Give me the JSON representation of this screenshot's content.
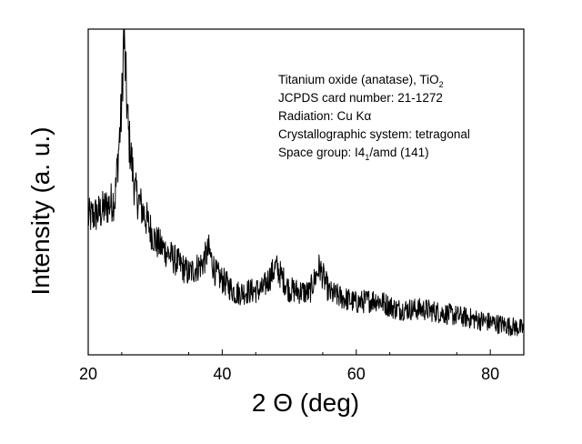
{
  "chart_data": {
    "type": "line",
    "xlabel": "2 Θ (deg)",
    "ylabel": "Intensity (a. u.)",
    "xlim": [
      20,
      85
    ],
    "ylim": [
      0,
      100
    ],
    "x_ticks": [
      "20",
      "40",
      "60",
      "80"
    ],
    "x_tick_values": [
      20,
      40,
      60,
      80
    ],
    "y_ticks_shown": false,
    "grid": false,
    "line_color": "#000000",
    "annotations": [
      {
        "text": "Titanium oxide (anatase), TiO",
        "sub": "2",
        "tail": ""
      },
      {
        "text": "JCPDS card number: 21-1272",
        "sub": "",
        "tail": ""
      },
      {
        "text": "Radiation: Cu Kα",
        "sub": "",
        "tail": ""
      },
      {
        "text": "Crystallographic system: tetragonal",
        "sub": "",
        "tail": ""
      },
      {
        "text": "Space group: I4",
        "sub": "1",
        "tail": "/amd (141)"
      }
    ],
    "series": [
      {
        "x": [
          20,
          22,
          24,
          25,
          25.3,
          26,
          27,
          30,
          35,
          37,
          38,
          39,
          42,
          46,
          48,
          50,
          53,
          54.5,
          56,
          60,
          63,
          66,
          70,
          75,
          80,
          85
        ],
        "y": [
          42,
          44,
          48,
          76,
          98,
          68,
          50,
          35,
          25,
          28,
          32,
          25,
          19,
          20,
          27,
          20,
          19,
          27,
          19,
          16,
          17,
          14,
          14,
          12,
          10,
          8
        ]
      }
    ]
  }
}
